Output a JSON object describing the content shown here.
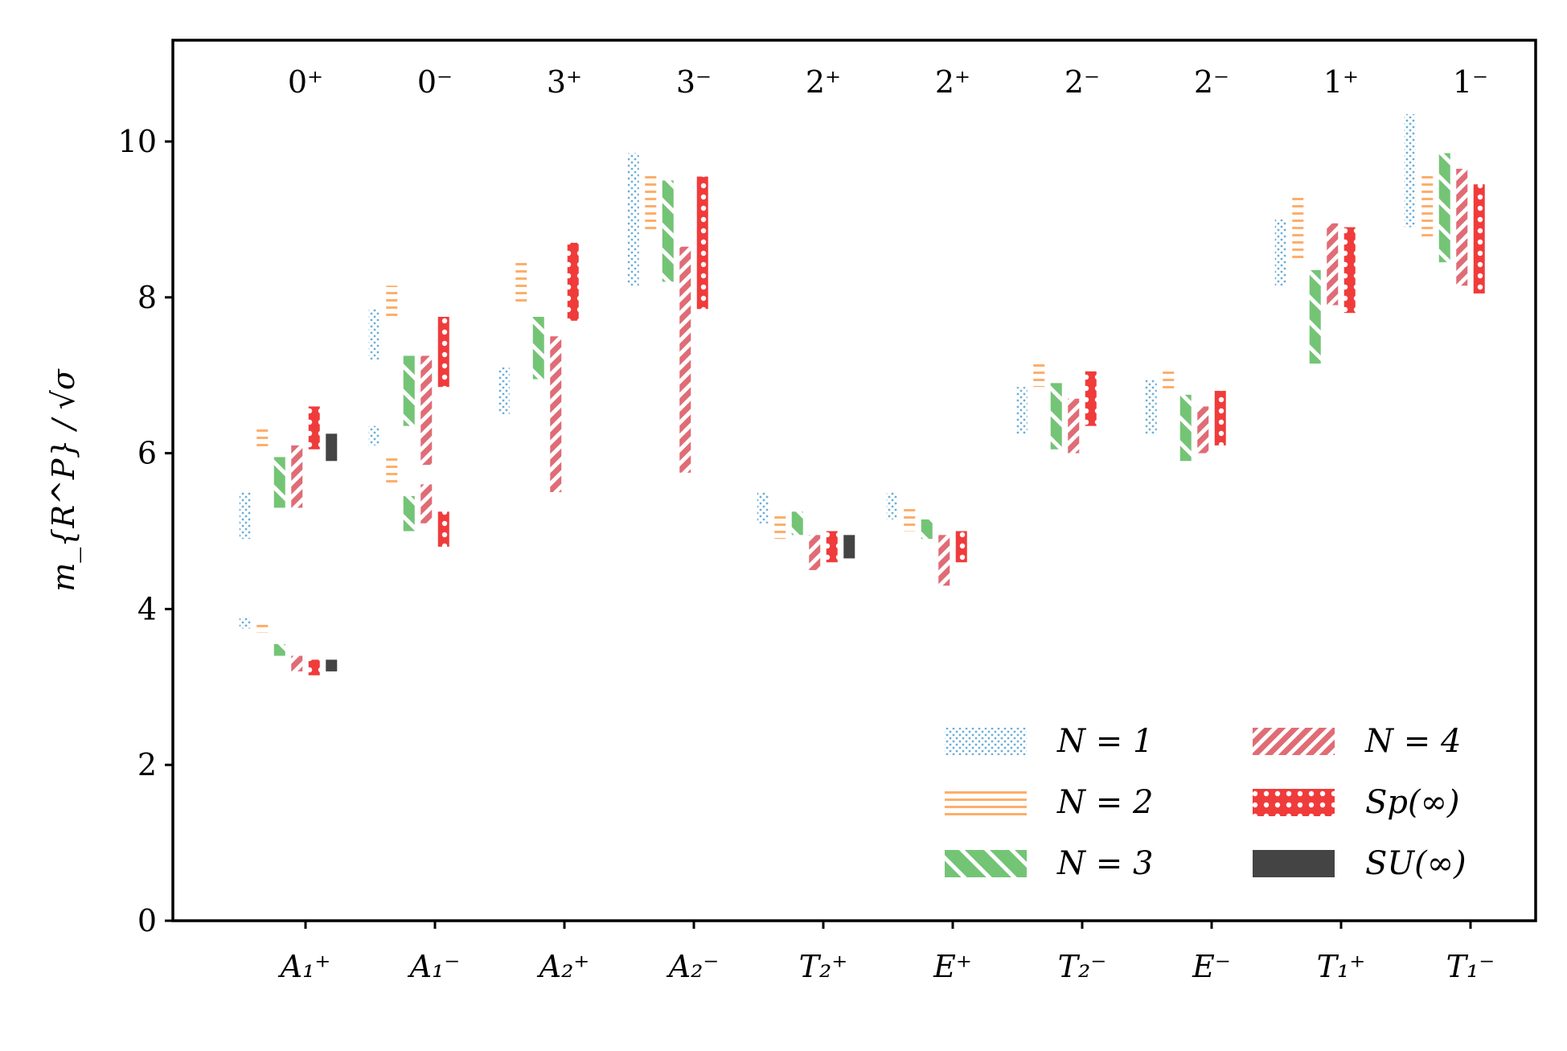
{
  "chart_data": {
    "type": "bar",
    "ylabel": "m_{R^P} / √σ",
    "ylim": [
      0,
      11.3
    ],
    "yticks": [
      0,
      2,
      4,
      6,
      8,
      10
    ],
    "grid": false,
    "legend_position": "lower-right",
    "categories": [
      "A₁⁺",
      "A₁⁻",
      "A₂⁺",
      "A₂⁻",
      "T₂⁺",
      "E⁺",
      "T₂⁻",
      "E⁻",
      "T₁⁺",
      "T₁⁻"
    ],
    "top_labels": [
      "0⁺",
      "0⁻",
      "3⁺",
      "3⁻",
      "2⁺",
      "2⁺",
      "2⁻",
      "2⁻",
      "1⁺",
      "1⁻"
    ],
    "colors": {
      "N=1": "#6baed6",
      "N=2": "#fdae6b",
      "N=3": "#74c476",
      "N=4": "#e06c75",
      "Sp(∞)": "#f03b3b",
      "SU(∞)": "#444444"
    },
    "series": [
      {
        "name": "N = 1",
        "key": "N=1",
        "pattern": "dots",
        "intervals": [
          [
            0,
            3.75,
            3.9
          ],
          [
            0,
            4.9,
            5.5
          ],
          [
            1,
            6.1,
            6.35
          ],
          [
            1,
            7.2,
            7.85
          ],
          [
            2,
            6.5,
            7.1
          ],
          [
            3,
            8.15,
            9.85
          ],
          [
            4,
            5.1,
            5.5
          ],
          [
            5,
            5.15,
            5.5
          ],
          [
            6,
            6.25,
            6.85
          ],
          [
            7,
            6.25,
            6.95
          ],
          [
            8,
            8.15,
            9.0
          ],
          [
            9,
            8.9,
            10.35
          ]
        ]
      },
      {
        "name": "N = 2",
        "key": "N=2",
        "pattern": "hlines",
        "intervals": [
          [
            0,
            3.7,
            3.8
          ],
          [
            0,
            6.05,
            6.35
          ],
          [
            1,
            5.6,
            5.95
          ],
          [
            1,
            7.75,
            8.15
          ],
          [
            2,
            7.9,
            8.45
          ],
          [
            3,
            8.85,
            9.6
          ],
          [
            4,
            4.9,
            5.2
          ],
          [
            5,
            5.0,
            5.3
          ],
          [
            6,
            6.85,
            7.2
          ],
          [
            7,
            6.8,
            7.1
          ],
          [
            8,
            8.5,
            9.3
          ],
          [
            9,
            8.75,
            9.6
          ]
        ]
      },
      {
        "name": "N = 3",
        "key": "N=3",
        "pattern": "backslash",
        "intervals": [
          [
            0,
            3.4,
            3.55
          ],
          [
            0,
            5.3,
            5.95
          ],
          [
            1,
            5.0,
            5.45
          ],
          [
            1,
            6.35,
            7.25
          ],
          [
            2,
            6.95,
            7.75
          ],
          [
            3,
            8.2,
            9.5
          ],
          [
            4,
            4.95,
            5.25
          ],
          [
            5,
            4.9,
            5.15
          ],
          [
            6,
            6.05,
            6.9
          ],
          [
            7,
            5.9,
            6.75
          ],
          [
            8,
            7.15,
            8.35
          ],
          [
            9,
            8.45,
            9.85
          ]
        ]
      },
      {
        "name": "N = 4",
        "key": "N=4",
        "pattern": "slash",
        "intervals": [
          [
            0,
            3.2,
            3.4
          ],
          [
            0,
            5.3,
            6.1
          ],
          [
            1,
            5.1,
            5.6
          ],
          [
            1,
            5.85,
            7.25
          ],
          [
            2,
            5.5,
            7.5
          ],
          [
            3,
            5.75,
            8.65
          ],
          [
            4,
            4.5,
            4.95
          ],
          [
            5,
            4.3,
            4.95
          ],
          [
            6,
            6.0,
            6.7
          ],
          [
            7,
            6.0,
            6.6
          ],
          [
            8,
            7.9,
            8.95
          ],
          [
            9,
            8.15,
            9.65
          ]
        ]
      },
      {
        "name": "Sp(∞)",
        "key": "Sp(∞)",
        "pattern": "circles",
        "intervals": [
          [
            0,
            3.15,
            3.35
          ],
          [
            0,
            6.05,
            6.6
          ],
          [
            1,
            4.8,
            5.25
          ],
          [
            1,
            6.85,
            7.75
          ],
          [
            2,
            7.7,
            8.7
          ],
          [
            3,
            7.85,
            9.55
          ],
          [
            4,
            4.6,
            5.0
          ],
          [
            5,
            4.6,
            5.0
          ],
          [
            6,
            6.35,
            7.05
          ],
          [
            7,
            6.1,
            6.8
          ],
          [
            8,
            7.8,
            8.9
          ],
          [
            9,
            8.05,
            9.45
          ]
        ]
      },
      {
        "name": "SU(∞)",
        "key": "SU(∞)",
        "pattern": "solid",
        "intervals": [
          [
            0,
            3.2,
            3.35
          ],
          [
            0,
            5.9,
            6.25
          ],
          [
            4,
            4.65,
            4.95
          ]
        ]
      }
    ]
  }
}
